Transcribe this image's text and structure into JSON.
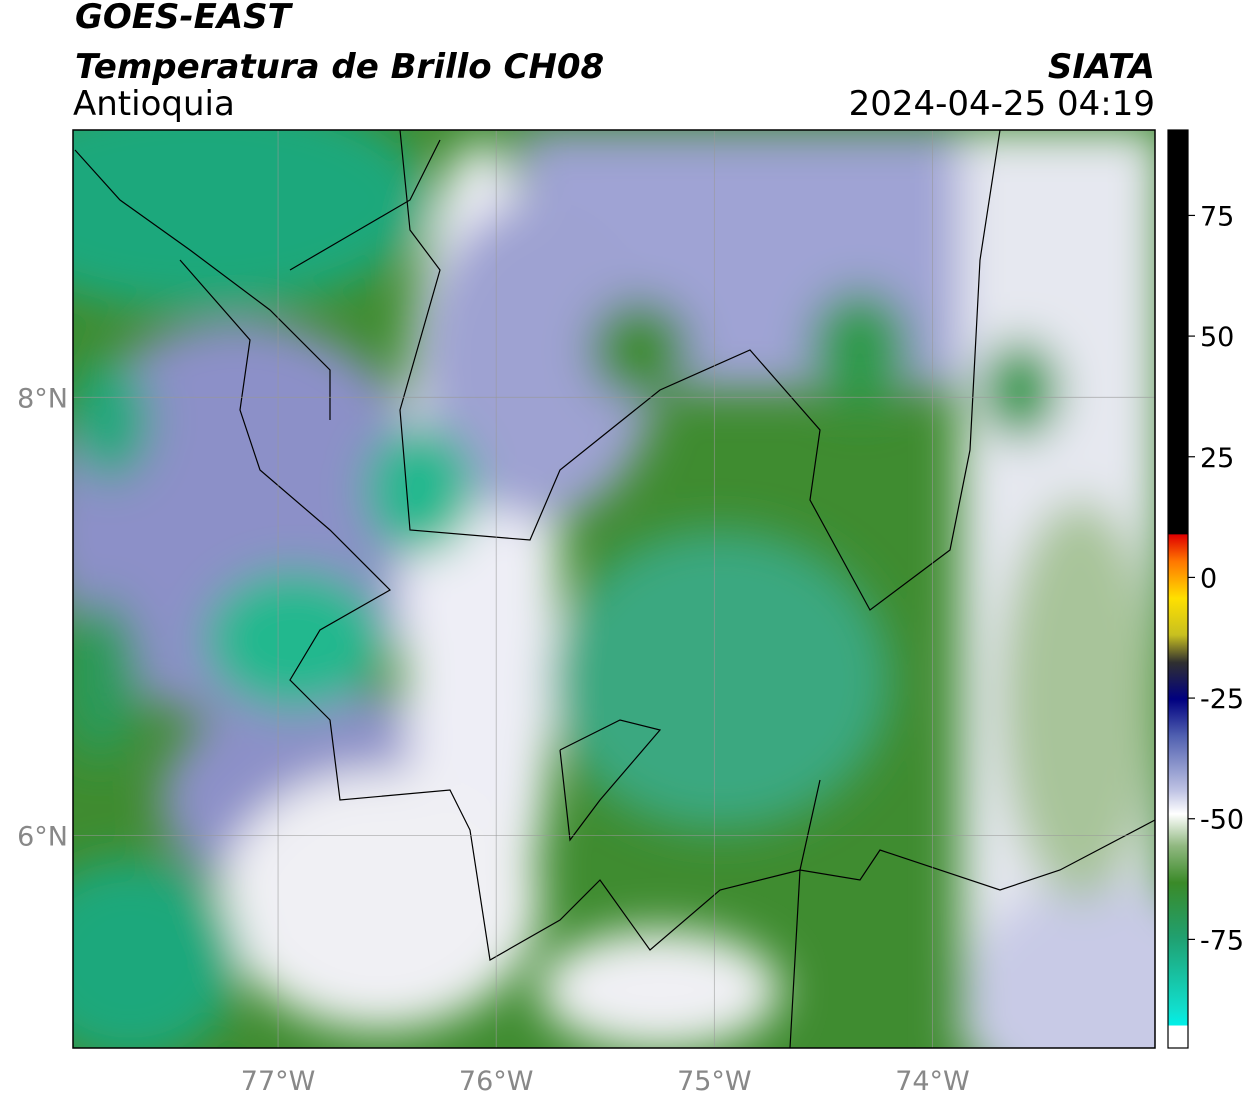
{
  "header": {
    "satellite": "GOES-EAST",
    "product": "Temperatura de Brillo CH08",
    "region": "Antioquia",
    "organization": "SIATA",
    "timestamp": "2024-04-25 04:19"
  },
  "map": {
    "lon_range": [
      -77.94,
      -72.98
    ],
    "lat_range": [
      5.03,
      9.22
    ],
    "lon_ticks": [
      {
        "value": -77,
        "label": "77°W"
      },
      {
        "value": -76,
        "label": "76°W"
      },
      {
        "value": -75,
        "label": "75°W"
      },
      {
        "value": -74,
        "label": "74°W"
      }
    ],
    "lat_ticks": [
      {
        "value": 8,
        "label": "8°N"
      },
      {
        "value": 6,
        "label": "6°N"
      }
    ]
  },
  "colorbar": {
    "range": [
      -97.5,
      92.7
    ],
    "ticks": [
      75,
      50,
      25,
      0,
      -25,
      -50,
      -75
    ]
  }
}
